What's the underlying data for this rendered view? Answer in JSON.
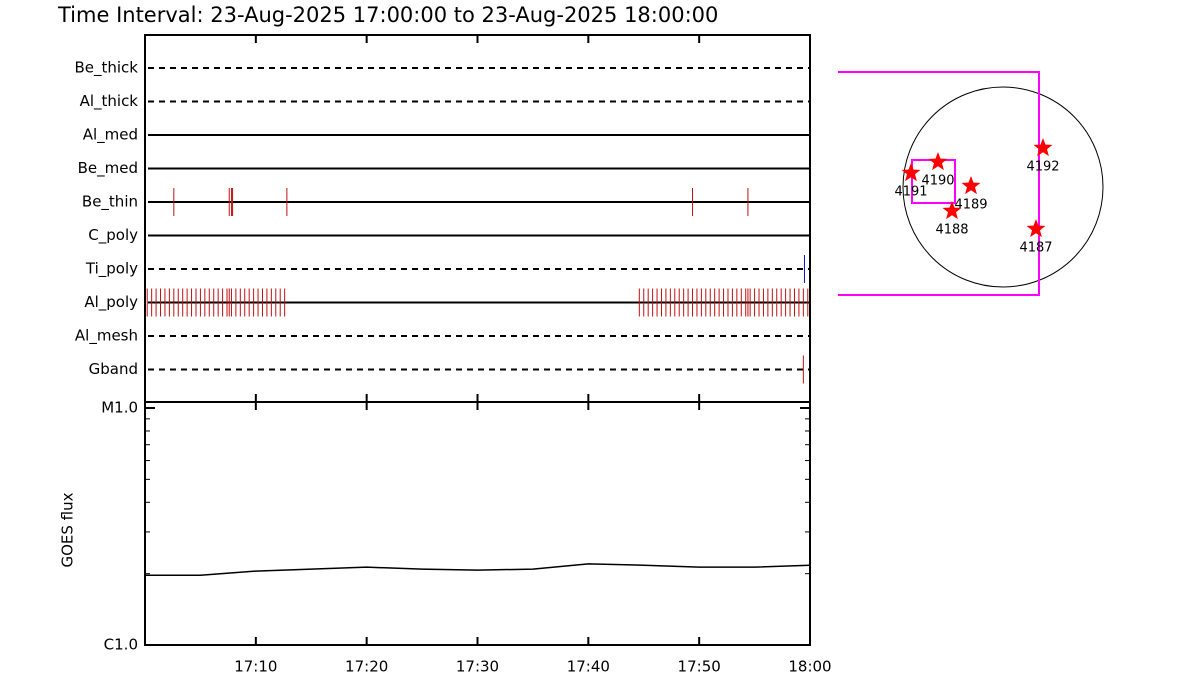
{
  "chart_data": [
    {
      "type": "timeline",
      "title": "Time Interval: 23-Aug-2025 17:00:00 to 23-Aug-2025 18:00:00",
      "categories": [
        "Be_thick",
        "Al_thick",
        "Al_med",
        "Be_med",
        "Be_thin",
        "C_poly",
        "Ti_poly",
        "Al_poly",
        "Al_mesh",
        "Gband"
      ],
      "line_styles": [
        "dashed",
        "dashed",
        "solid",
        "solid",
        "solid",
        "solid",
        "dashed",
        "solid",
        "dashed",
        "dashed"
      ],
      "event_colors": [
        "#c01010",
        "#c01010",
        "#c01010",
        "#c01010",
        "#c01010",
        "#c01010",
        "#1010c0",
        "#c01010",
        "#c01010",
        "#c01010"
      ],
      "events": [
        [],
        [],
        [],
        [],
        [
          2.6,
          7.6,
          7.8,
          7.9,
          12.8,
          49.4,
          54.4
        ],
        [],
        [
          59.5
        ],
        [
          0.2,
          0.6,
          1.0,
          1.4,
          1.8,
          2.2,
          2.6,
          3.0,
          3.4,
          3.8,
          4.2,
          4.6,
          5.0,
          5.4,
          5.8,
          6.2,
          6.6,
          7.0,
          7.4,
          7.6,
          7.8,
          8.2,
          8.6,
          9.0,
          9.4,
          9.8,
          10.2,
          10.6,
          11.0,
          11.4,
          11.8,
          12.2,
          12.6,
          44.6,
          45.0,
          45.4,
          45.8,
          46.2,
          46.6,
          47.0,
          47.4,
          47.8,
          48.2,
          48.6,
          49.0,
          49.4,
          49.8,
          50.2,
          50.6,
          51.0,
          51.4,
          51.8,
          52.2,
          52.6,
          53.0,
          53.4,
          53.8,
          54.2,
          54.4,
          54.6,
          55.0,
          55.4,
          55.8,
          56.2,
          56.6,
          57.0,
          57.4,
          57.8,
          58.2,
          58.6,
          59.0,
          59.4,
          59.8
        ],
        [],
        [
          59.4
        ]
      ],
      "xlim": [
        0,
        60
      ],
      "xticks": [
        10,
        20,
        30,
        40,
        50,
        60
      ]
    },
    {
      "type": "line",
      "ylabel": "GOES flux",
      "x": [
        0,
        5,
        10,
        15,
        20,
        25,
        30,
        35,
        40,
        45,
        50,
        55,
        60
      ],
      "values": [
        1.97e-06,
        1.97e-06,
        2.05e-06,
        2.09e-06,
        2.13e-06,
        2.09e-06,
        2.07e-06,
        2.09e-06,
        2.2e-06,
        2.17e-06,
        2.13e-06,
        2.13e-06,
        2.17e-06
      ],
      "color": "#000000",
      "log": true,
      "xlim": [
        0,
        60
      ],
      "xticks": [
        {
          "value": 10,
          "label": "17:10"
        },
        {
          "value": 20,
          "label": "17:20"
        },
        {
          "value": 30,
          "label": "17:30"
        },
        {
          "value": 40,
          "label": "17:40"
        },
        {
          "value": 50,
          "label": "17:50"
        },
        {
          "value": 60,
          "label": "18:00"
        }
      ],
      "ylim": [
        1e-06,
        1e-05
      ],
      "yticks": [
        {
          "value": 1e-06,
          "label": "C1.0"
        },
        {
          "value": 1e-05,
          "label": "M1.0"
        }
      ],
      "minor_yticks": [
        2e-06,
        3e-06,
        4e-06,
        5e-06,
        6e-06,
        7e-06,
        8e-06,
        9e-06
      ]
    },
    {
      "type": "map",
      "color": "#ff0000",
      "regions": [
        {
          "label": "4191",
          "x": -0.92,
          "y": 0.14
        },
        {
          "label": "4190",
          "x": -0.65,
          "y": 0.25
        },
        {
          "label": "4189",
          "x": -0.32,
          "y": 0.01
        },
        {
          "label": "4188",
          "x": -0.51,
          "y": -0.24
        },
        {
          "label": "4192",
          "x": 0.4,
          "y": 0.39
        },
        {
          "label": "4187",
          "x": 0.33,
          "y": -0.42
        }
      ]
    }
  ]
}
